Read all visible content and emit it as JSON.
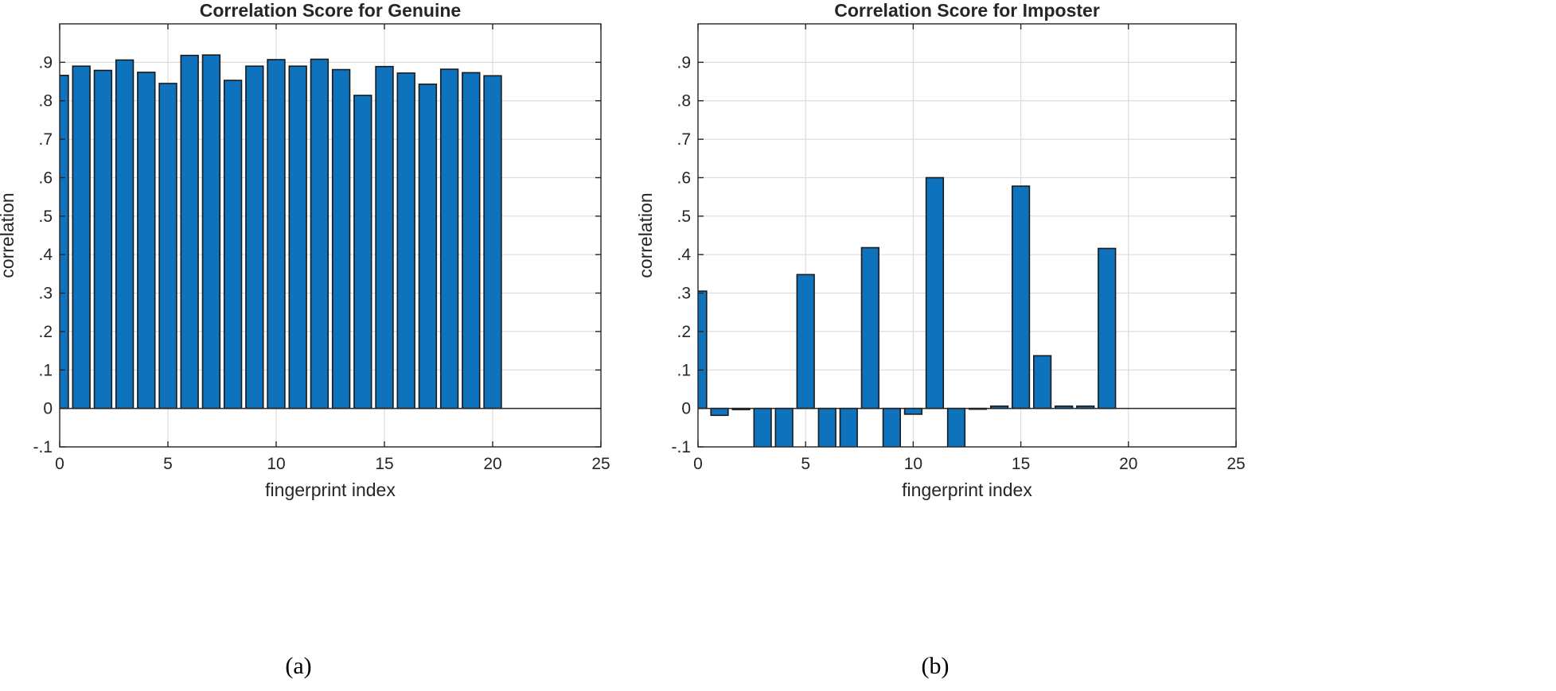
{
  "chart_data": [
    {
      "type": "bar",
      "title": "Correlation Score for Genuine",
      "xlabel": "fingerprint index",
      "ylabel": "correlation",
      "panel_label": "(a)",
      "x": [
        0,
        1,
        2,
        3,
        4,
        5,
        6,
        7,
        8,
        9,
        10,
        11,
        12,
        13,
        14,
        15,
        16,
        17,
        18,
        19,
        20
      ],
      "values": [
        0.866,
        0.89,
        0.879,
        0.906,
        0.874,
        0.845,
        0.918,
        0.919,
        0.853,
        0.89,
        0.907,
        0.89,
        0.908,
        0.881,
        0.814,
        0.889,
        0.872,
        0.843,
        0.882,
        0.873,
        0.865
      ],
      "xlim": [
        0,
        25
      ],
      "ylim": [
        -0.1,
        1.0
      ],
      "xticks": [
        0,
        5,
        10,
        15,
        20,
        25
      ],
      "yticks": [
        -0.1,
        0,
        0.1,
        0.2,
        0.3,
        0.4,
        0.5,
        0.6,
        0.7,
        0.8,
        0.9
      ],
      "grid": true,
      "color": "#0f72bd"
    },
    {
      "type": "bar",
      "title": "Correlation Score for Imposter",
      "xlabel": "fingerprint index",
      "ylabel": "correlation",
      "panel_label": "(b)",
      "x": [
        0,
        1,
        2,
        3,
        4,
        5,
        6,
        7,
        8,
        9,
        10,
        11,
        12,
        13,
        14,
        15,
        16,
        17,
        18,
        19,
        20
      ],
      "values": [
        0.305,
        -0.018,
        -0.003,
        -0.13,
        -0.12,
        0.348,
        -0.12,
        -0.12,
        0.418,
        -0.11,
        -0.015,
        0.6,
        -0.12,
        -0.002,
        0.006,
        0.578,
        0.137,
        0.006,
        0.006,
        0.416,
        0.0
      ],
      "xlim": [
        0,
        25
      ],
      "ylim": [
        -0.1,
        1.0
      ],
      "xticks": [
        0,
        5,
        10,
        15,
        20,
        25
      ],
      "yticks": [
        -0.1,
        0,
        0.1,
        0.2,
        0.3,
        0.4,
        0.5,
        0.6,
        0.7,
        0.8,
        0.9
      ],
      "grid": true,
      "color": "#0f72bd"
    }
  ]
}
